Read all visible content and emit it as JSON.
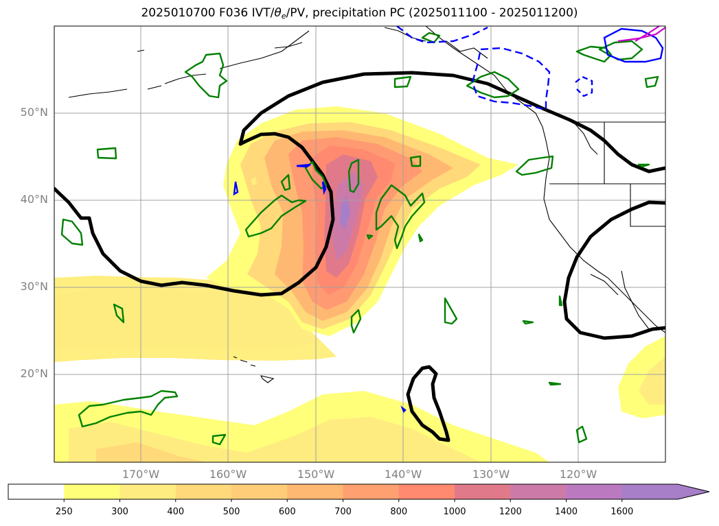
{
  "title": {
    "prefix": "2025010700 F036 IVT/",
    "theta": "θ",
    "theta_sub": "e",
    "suffix": "/PV, precipitation PC (2025011100 - 2025011200)"
  },
  "map": {
    "lat_labels": [
      "50°N",
      "40°N",
      "30°N",
      "20°N"
    ],
    "lon_labels": [
      "170°W",
      "160°W",
      "150°W",
      "140°W",
      "130°W",
      "120°W"
    ]
  },
  "colorbar": {
    "levels": [
      "250",
      "300",
      "400",
      "500",
      "600",
      "700",
      "800",
      "1000",
      "1200",
      "1400",
      "1600"
    ],
    "colors": [
      "#ffffff",
      "#ffff7a",
      "#ffec80",
      "#ffd97a",
      "#ffcd78",
      "#ffb872",
      "#ffa070",
      "#ff8a70",
      "#e07a8a",
      "#cc7aa8",
      "#bb7ac0",
      "#a77ec8"
    ]
  },
  "contour_colors": {
    "pv": "#000000",
    "precip": "#008000",
    "theta_e": "#0000ff",
    "extra": "#cc00cc",
    "coast": "#000000",
    "grid": "#a0a0a0"
  }
}
